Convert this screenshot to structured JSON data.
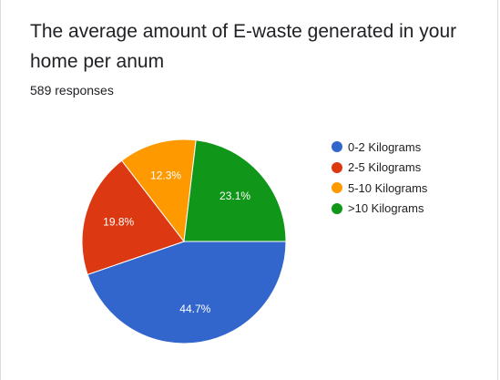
{
  "card": {
    "title": "The average amount of E-waste generated in your home per anum",
    "responses": "589 responses"
  },
  "chart_data": {
    "type": "pie",
    "categories": [
      "0-2 Kilograms",
      "2-5 Kilograms",
      "5-10 Kilograms",
      ">10 Kilograms"
    ],
    "values": [
      44.7,
      19.8,
      12.3,
      23.1
    ],
    "labels": [
      "44.7%",
      "19.8%",
      "12.3%",
      "23.1%"
    ],
    "colors": [
      "#3366cc",
      "#dc3912",
      "#ff9900",
      "#109618"
    ],
    "legend_position": "right",
    "start": "right-horizontal",
    "direction": "clockwise"
  }
}
